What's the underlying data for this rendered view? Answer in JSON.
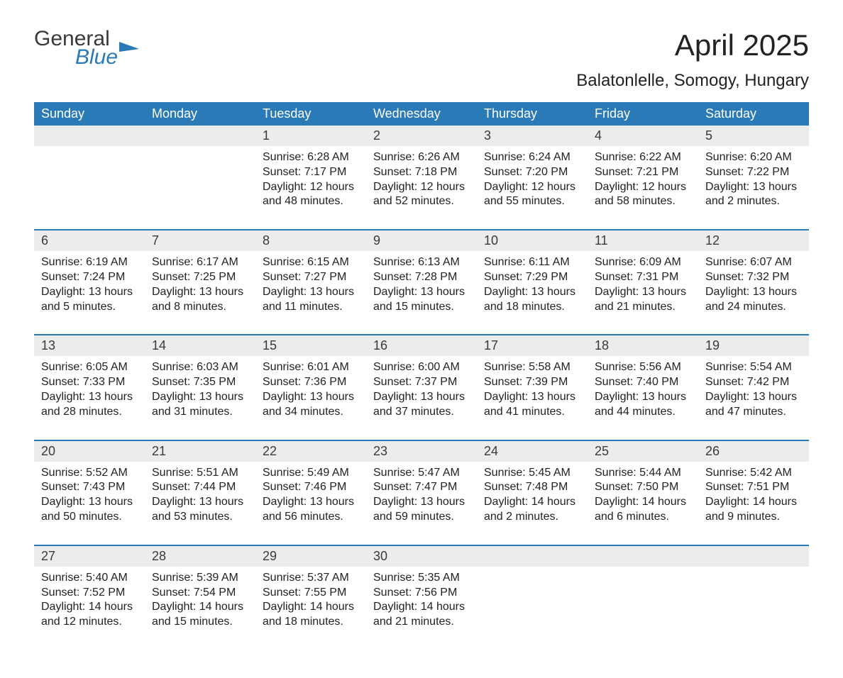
{
  "logo": {
    "general": "General",
    "blue": "Blue"
  },
  "title": "April 2025",
  "location": "Balatonlelle, Somogy, Hungary",
  "colors": {
    "header_bg": "#2a7ab8",
    "header_text": "#ffffff",
    "daynum_bg": "#ececec",
    "border": "#2a7ab8",
    "text": "#222222",
    "logo_blue": "#2a7ab8"
  },
  "weekdays": [
    "Sunday",
    "Monday",
    "Tuesday",
    "Wednesday",
    "Thursday",
    "Friday",
    "Saturday"
  ],
  "weeks": [
    [
      null,
      null,
      {
        "n": "1",
        "sr": "6:28 AM",
        "ss": "7:17 PM",
        "dh": "12",
        "dm": "48"
      },
      {
        "n": "2",
        "sr": "6:26 AM",
        "ss": "7:18 PM",
        "dh": "12",
        "dm": "52"
      },
      {
        "n": "3",
        "sr": "6:24 AM",
        "ss": "7:20 PM",
        "dh": "12",
        "dm": "55"
      },
      {
        "n": "4",
        "sr": "6:22 AM",
        "ss": "7:21 PM",
        "dh": "12",
        "dm": "58"
      },
      {
        "n": "5",
        "sr": "6:20 AM",
        "ss": "7:22 PM",
        "dh": "13",
        "dm": "2"
      }
    ],
    [
      {
        "n": "6",
        "sr": "6:19 AM",
        "ss": "7:24 PM",
        "dh": "13",
        "dm": "5"
      },
      {
        "n": "7",
        "sr": "6:17 AM",
        "ss": "7:25 PM",
        "dh": "13",
        "dm": "8"
      },
      {
        "n": "8",
        "sr": "6:15 AM",
        "ss": "7:27 PM",
        "dh": "13",
        "dm": "11"
      },
      {
        "n": "9",
        "sr": "6:13 AM",
        "ss": "7:28 PM",
        "dh": "13",
        "dm": "15"
      },
      {
        "n": "10",
        "sr": "6:11 AM",
        "ss": "7:29 PM",
        "dh": "13",
        "dm": "18"
      },
      {
        "n": "11",
        "sr": "6:09 AM",
        "ss": "7:31 PM",
        "dh": "13",
        "dm": "21"
      },
      {
        "n": "12",
        "sr": "6:07 AM",
        "ss": "7:32 PM",
        "dh": "13",
        "dm": "24"
      }
    ],
    [
      {
        "n": "13",
        "sr": "6:05 AM",
        "ss": "7:33 PM",
        "dh": "13",
        "dm": "28"
      },
      {
        "n": "14",
        "sr": "6:03 AM",
        "ss": "7:35 PM",
        "dh": "13",
        "dm": "31"
      },
      {
        "n": "15",
        "sr": "6:01 AM",
        "ss": "7:36 PM",
        "dh": "13",
        "dm": "34"
      },
      {
        "n": "16",
        "sr": "6:00 AM",
        "ss": "7:37 PM",
        "dh": "13",
        "dm": "37"
      },
      {
        "n": "17",
        "sr": "5:58 AM",
        "ss": "7:39 PM",
        "dh": "13",
        "dm": "41"
      },
      {
        "n": "18",
        "sr": "5:56 AM",
        "ss": "7:40 PM",
        "dh": "13",
        "dm": "44"
      },
      {
        "n": "19",
        "sr": "5:54 AM",
        "ss": "7:42 PM",
        "dh": "13",
        "dm": "47"
      }
    ],
    [
      {
        "n": "20",
        "sr": "5:52 AM",
        "ss": "7:43 PM",
        "dh": "13",
        "dm": "50"
      },
      {
        "n": "21",
        "sr": "5:51 AM",
        "ss": "7:44 PM",
        "dh": "13",
        "dm": "53"
      },
      {
        "n": "22",
        "sr": "5:49 AM",
        "ss": "7:46 PM",
        "dh": "13",
        "dm": "56"
      },
      {
        "n": "23",
        "sr": "5:47 AM",
        "ss": "7:47 PM",
        "dh": "13",
        "dm": "59"
      },
      {
        "n": "24",
        "sr": "5:45 AM",
        "ss": "7:48 PM",
        "dh": "14",
        "dm": "2"
      },
      {
        "n": "25",
        "sr": "5:44 AM",
        "ss": "7:50 PM",
        "dh": "14",
        "dm": "6"
      },
      {
        "n": "26",
        "sr": "5:42 AM",
        "ss": "7:51 PM",
        "dh": "14",
        "dm": "9"
      }
    ],
    [
      {
        "n": "27",
        "sr": "5:40 AM",
        "ss": "7:52 PM",
        "dh": "14",
        "dm": "12"
      },
      {
        "n": "28",
        "sr": "5:39 AM",
        "ss": "7:54 PM",
        "dh": "14",
        "dm": "15"
      },
      {
        "n": "29",
        "sr": "5:37 AM",
        "ss": "7:55 PM",
        "dh": "14",
        "dm": "18"
      },
      {
        "n": "30",
        "sr": "5:35 AM",
        "ss": "7:56 PM",
        "dh": "14",
        "dm": "21"
      },
      null,
      null,
      null
    ]
  ],
  "labels": {
    "sunrise": "Sunrise: ",
    "sunset": "Sunset: ",
    "daylight1": "Daylight: ",
    "daylight2": " hours",
    "daylight3": "and ",
    "daylight4": " minutes."
  }
}
